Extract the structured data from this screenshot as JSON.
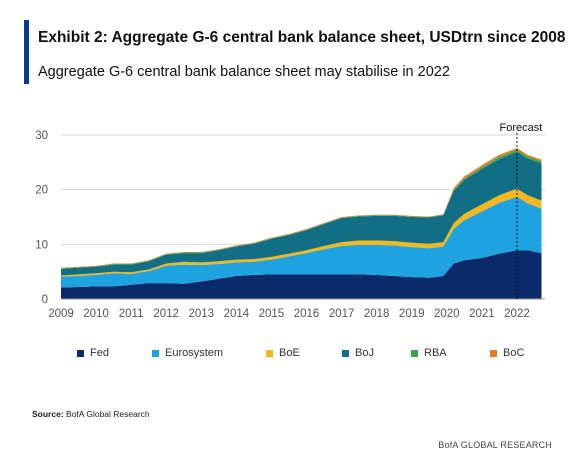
{
  "header": {
    "title": "Exhibit 2: Aggregate G-6 central bank balance sheet, USDtrn since 2008",
    "subtitle": "Aggregate G-6 central bank balance sheet may stabilise in 2022"
  },
  "colors": {
    "accent": "#0a3a8c",
    "fed": "#0b2a6b",
    "eurosystem": "#1ea2e0",
    "boe": "#f2b81c",
    "boj": "#126e85",
    "rba": "#3aa84a",
    "boc": "#ee7b22"
  },
  "chart_data": {
    "type": "area",
    "stacked": true,
    "x": [
      2009.0,
      2009.5,
      2010.0,
      2010.5,
      2011.0,
      2011.5,
      2012.0,
      2012.5,
      2013.0,
      2013.5,
      2014.0,
      2014.5,
      2015.0,
      2015.5,
      2016.0,
      2016.5,
      2017.0,
      2017.5,
      2018.0,
      2018.5,
      2019.0,
      2019.5,
      2019.9,
      2020.2,
      2020.5,
      2021.0,
      2021.5,
      2022.0,
      2022.3,
      2022.7
    ],
    "series": [
      {
        "name": "Fed",
        "values": [
          2.1,
          2.2,
          2.3,
          2.3,
          2.6,
          2.9,
          2.9,
          2.8,
          3.2,
          3.7,
          4.2,
          4.4,
          4.5,
          4.5,
          4.5,
          4.5,
          4.5,
          4.5,
          4.4,
          4.2,
          4.0,
          3.9,
          4.2,
          6.5,
          7.1,
          7.5,
          8.3,
          8.9,
          8.9,
          8.4
        ]
      },
      {
        "name": "Eurosystem",
        "values": [
          2.0,
          2.0,
          2.1,
          2.4,
          2.0,
          2.2,
          3.2,
          3.5,
          3.0,
          2.7,
          2.5,
          2.4,
          2.7,
          3.3,
          3.9,
          4.6,
          5.2,
          5.4,
          5.5,
          5.6,
          5.5,
          5.4,
          5.4,
          6.3,
          7.3,
          8.5,
          9.3,
          9.8,
          8.6,
          8.1
        ]
      },
      {
        "name": "BoE",
        "values": [
          0.2,
          0.3,
          0.3,
          0.3,
          0.3,
          0.3,
          0.4,
          0.5,
          0.5,
          0.5,
          0.5,
          0.5,
          0.5,
          0.5,
          0.5,
          0.6,
          0.7,
          0.8,
          0.8,
          0.8,
          0.8,
          0.8,
          0.8,
          1.1,
          1.2,
          1.3,
          1.4,
          1.5,
          1.5,
          1.5
        ]
      },
      {
        "name": "BoJ",
        "values": [
          1.2,
          1.2,
          1.2,
          1.3,
          1.4,
          1.5,
          1.6,
          1.6,
          1.7,
          2.0,
          2.4,
          2.8,
          3.3,
          3.4,
          3.7,
          4.0,
          4.4,
          4.4,
          4.5,
          4.6,
          4.7,
          4.8,
          4.9,
          5.9,
          6.2,
          6.5,
          6.6,
          6.7,
          6.7,
          6.8
        ]
      },
      {
        "name": "RBA",
        "values": [
          0.1,
          0.1,
          0.1,
          0.1,
          0.1,
          0.1,
          0.1,
          0.1,
          0.1,
          0.1,
          0.1,
          0.1,
          0.1,
          0.1,
          0.1,
          0.1,
          0.1,
          0.1,
          0.1,
          0.1,
          0.1,
          0.1,
          0.1,
          0.2,
          0.2,
          0.3,
          0.4,
          0.4,
          0.4,
          0.4
        ]
      },
      {
        "name": "BoC",
        "values": [
          0.1,
          0.1,
          0.1,
          0.1,
          0.1,
          0.1,
          0.1,
          0.1,
          0.1,
          0.1,
          0.1,
          0.1,
          0.1,
          0.1,
          0.1,
          0.1,
          0.1,
          0.1,
          0.1,
          0.1,
          0.1,
          0.1,
          0.1,
          0.3,
          0.4,
          0.4,
          0.4,
          0.3,
          0.3,
          0.3
        ]
      }
    ],
    "xlim": [
      2009,
      2022.8
    ],
    "ylim": [
      0,
      30
    ],
    "yticks": [
      0,
      10,
      20,
      30
    ],
    "xticks": [
      2009,
      2010,
      2011,
      2012,
      2013,
      2014,
      2015,
      2016,
      2017,
      2018,
      2019,
      2020,
      2021,
      2022
    ],
    "grid": true,
    "legend_position": "bottom",
    "annotation": {
      "text": "Forecast",
      "x": 2022
    }
  },
  "legend_labels": [
    "Fed",
    "Eurosystem",
    "BoE",
    "BoJ",
    "RBA",
    "BoC"
  ],
  "source": {
    "label": "Source:",
    "text": "BofA Global Research"
  },
  "footer": "BofA GLOBAL RESEARCH"
}
